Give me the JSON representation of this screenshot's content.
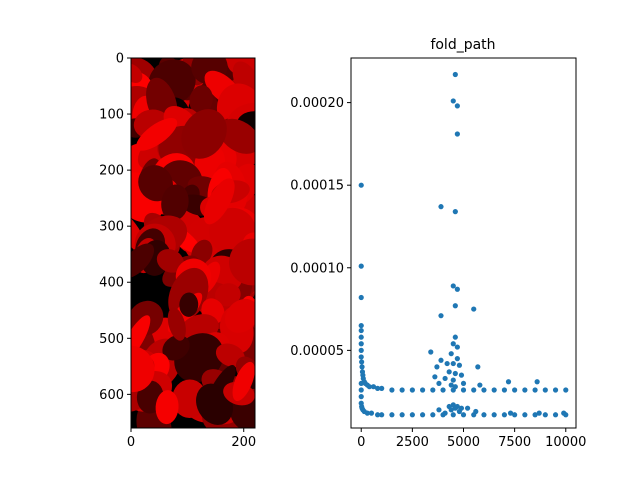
{
  "chart_data": [
    {
      "type": "heatmap",
      "title": "",
      "xlabel": "",
      "ylabel": "",
      "xlim": [
        0,
        220
      ],
      "ylim": [
        660,
        0
      ],
      "x_ticks": [
        0,
        200
      ],
      "y_ticks": [
        0,
        100,
        200,
        300,
        400,
        500,
        600
      ],
      "colormap": "black-to-red",
      "colors": {
        "low": "#000000",
        "high": "#ff0000"
      },
      "blocks": 6
    },
    {
      "type": "scatter",
      "title": "fold_path",
      "xlabel": "",
      "ylabel": "",
      "xlim": [
        -500,
        10500
      ],
      "ylim": [
        3e-06,
        0.000227
      ],
      "x_ticks": [
        0,
        2500,
        5000,
        7500,
        10000
      ],
      "y_ticks": [
        5e-05,
        0.0001,
        0.00015,
        0.0002
      ],
      "x_tick_labels": [
        "0",
        "2500",
        "5000",
        "7500",
        "10000"
      ],
      "y_tick_labels": [
        "0.00005",
        "0.00010",
        "0.00015",
        "0.00020"
      ],
      "color": "#1f77b4",
      "series": [
        {
          "points": [
            [
              0,
              0.00015
            ],
            [
              0,
              0.000101
            ],
            [
              0,
              8.2e-05
            ],
            [
              0,
              6.5e-05
            ],
            [
              0,
              6.2e-05
            ],
            [
              0,
              5.8e-05
            ],
            [
              0,
              5.4e-05
            ],
            [
              0,
              5e-05
            ],
            [
              0,
              4.6e-05
            ],
            [
              20,
              4.3e-05
            ],
            [
              40,
              4e-05
            ],
            [
              60,
              3.7e-05
            ],
            [
              80,
              3.5e-05
            ],
            [
              100,
              3.3e-05
            ],
            [
              150,
              3.1e-05
            ],
            [
              200,
              3e-05
            ],
            [
              300,
              2.9e-05
            ],
            [
              400,
              2.8e-05
            ],
            [
              600,
              2.8e-05
            ],
            [
              800,
              2.7e-05
            ],
            [
              1000,
              2.7e-05
            ],
            [
              1500,
              2.6e-05
            ],
            [
              2000,
              2.6e-05
            ],
            [
              2500,
              2.6e-05
            ],
            [
              3000,
              2.6e-05
            ],
            [
              3500,
              2.6e-05
            ],
            [
              4000,
              2.6e-05
            ],
            [
              4500,
              2.6e-05
            ],
            [
              5000,
              2.6e-05
            ],
            [
              5500,
              2.6e-05
            ],
            [
              6000,
              2.6e-05
            ],
            [
              6500,
              2.6e-05
            ],
            [
              7000,
              2.6e-05
            ],
            [
              7500,
              2.6e-05
            ],
            [
              8000,
              2.6e-05
            ],
            [
              8500,
              2.6e-05
            ],
            [
              9000,
              2.6e-05
            ],
            [
              9500,
              2.6e-05
            ],
            [
              10000,
              2.6e-05
            ],
            [
              0,
              3e-05
            ],
            [
              0,
              2.6e-05
            ],
            [
              0,
              2.2e-05
            ],
            [
              0,
              1.8e-05
            ],
            [
              20,
              1.6e-05
            ],
            [
              40,
              1.5e-05
            ],
            [
              80,
              1.4e-05
            ],
            [
              150,
              1.3e-05
            ],
            [
              300,
              1.2e-05
            ],
            [
              500,
              1.2e-05
            ],
            [
              800,
              1.1e-05
            ],
            [
              1000,
              1.1e-05
            ],
            [
              1500,
              1.1e-05
            ],
            [
              2000,
              1.1e-05
            ],
            [
              2500,
              1.1e-05
            ],
            [
              3000,
              1.1e-05
            ],
            [
              3500,
              1.1e-05
            ],
            [
              4000,
              1.1e-05
            ],
            [
              4500,
              1.1e-05
            ],
            [
              5000,
              1.1e-05
            ],
            [
              5500,
              1.1e-05
            ],
            [
              6000,
              1.1e-05
            ],
            [
              6500,
              1.1e-05
            ],
            [
              7000,
              1.1e-05
            ],
            [
              7500,
              1.1e-05
            ],
            [
              8000,
              1.1e-05
            ],
            [
              8500,
              1.1e-05
            ],
            [
              9000,
              1.1e-05
            ],
            [
              9500,
              1.1e-05
            ],
            [
              10000,
              1.1e-05
            ],
            [
              4600,
              0.000217
            ],
            [
              4500,
              0.000201
            ],
            [
              4700,
              0.000198
            ],
            [
              4700,
              0.000181
            ],
            [
              3900,
              0.000137
            ],
            [
              4600,
              0.000134
            ],
            [
              4500,
              8.9e-05
            ],
            [
              4700,
              8.7e-05
            ],
            [
              4600,
              7.7e-05
            ],
            [
              5500,
              7.5e-05
            ],
            [
              3900,
              7.1e-05
            ],
            [
              4600,
              5.8e-05
            ],
            [
              4500,
              5.4e-05
            ],
            [
              4700,
              5.2e-05
            ],
            [
              3400,
              4.9e-05
            ],
            [
              4400,
              4.8e-05
            ],
            [
              4700,
              4.5e-05
            ],
            [
              3900,
              4.4e-05
            ],
            [
              4200,
              4.2e-05
            ],
            [
              4500,
              4.2e-05
            ],
            [
              4800,
              4.1e-05
            ],
            [
              3700,
              4e-05
            ],
            [
              5700,
              4e-05
            ],
            [
              4300,
              3.7e-05
            ],
            [
              4600,
              3.6e-05
            ],
            [
              4900,
              3.5e-05
            ],
            [
              3600,
              3.4e-05
            ],
            [
              4100,
              3.3e-05
            ],
            [
              4500,
              3.2e-05
            ],
            [
              7200,
              3.1e-05
            ],
            [
              8600,
              3.1e-05
            ],
            [
              5000,
              3e-05
            ],
            [
              3800,
              3e-05
            ],
            [
              5800,
              2.9e-05
            ],
            [
              4400,
              2.9e-05
            ],
            [
              4600,
              2.8e-05
            ],
            [
              4500,
              1.7e-05
            ],
            [
              4700,
              1.6e-05
            ],
            [
              4300,
              1.6e-05
            ],
            [
              4900,
              1.5e-05
            ],
            [
              4600,
              1.5e-05
            ],
            [
              5200,
              1.5e-05
            ],
            [
              3800,
              1.4e-05
            ],
            [
              4400,
              1.4e-05
            ],
            [
              4800,
              1.3e-05
            ],
            [
              5600,
              1.3e-05
            ],
            [
              4100,
              1.2e-05
            ],
            [
              8700,
              1.2e-05
            ],
            [
              7300,
              1.2e-05
            ],
            [
              9900,
              1.2e-05
            ]
          ]
        }
      ]
    }
  ]
}
